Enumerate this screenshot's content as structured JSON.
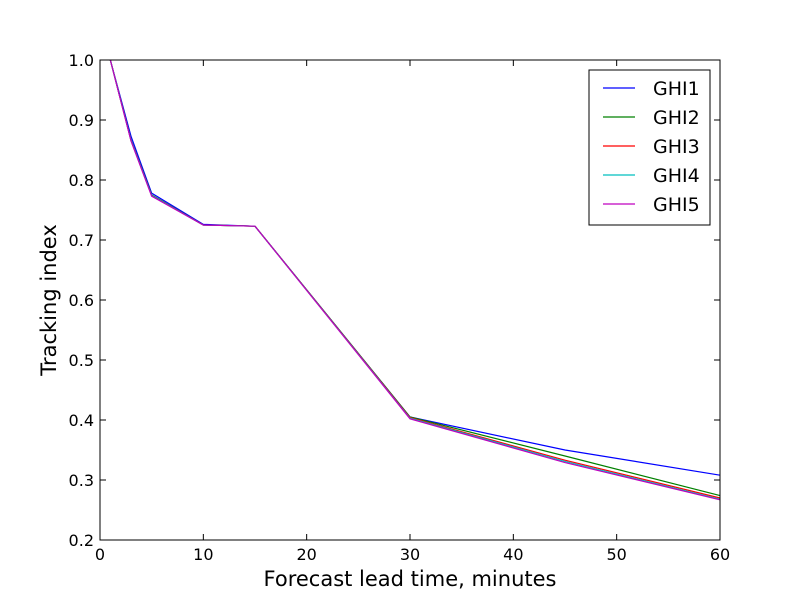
{
  "chart_data": {
    "type": "line",
    "title": "",
    "xlabel": "Forecast lead time, minutes",
    "ylabel": "Tracking index",
    "xlim": [
      0,
      60
    ],
    "ylim": [
      0.2,
      1.0
    ],
    "xticks": [
      0,
      10,
      20,
      30,
      40,
      50,
      60
    ],
    "xtick_labels": [
      "0",
      "10",
      "20",
      "30",
      "40",
      "50",
      "60"
    ],
    "yticks": [
      0.2,
      0.3,
      0.4,
      0.5,
      0.6,
      0.7,
      0.8,
      0.9,
      1.0
    ],
    "ytick_labels": [
      "0.2",
      "0.3",
      "0.4",
      "0.5",
      "0.6",
      "0.7",
      "0.8",
      "0.9",
      "1.0"
    ],
    "grid": false,
    "legend_position": "top-right",
    "x": [
      1,
      3,
      5,
      10,
      15,
      30,
      45,
      60
    ],
    "series": [
      {
        "name": "GHI1",
        "color": "#0000ff",
        "values": [
          1.0,
          0.873,
          0.778,
          0.726,
          0.723,
          0.405,
          0.35,
          0.308
        ]
      },
      {
        "name": "GHI2",
        "color": "#008000",
        "values": [
          1.0,
          0.867,
          0.775,
          0.725,
          0.723,
          0.405,
          0.34,
          0.274
        ]
      },
      {
        "name": "GHI3",
        "color": "#ff0000",
        "values": [
          1.0,
          0.866,
          0.774,
          0.725,
          0.723,
          0.404,
          0.333,
          0.27
        ]
      },
      {
        "name": "GHI4",
        "color": "#00bfbf",
        "values": [
          1.0,
          0.866,
          0.774,
          0.725,
          0.723,
          0.403,
          0.331,
          0.268
        ]
      },
      {
        "name": "GHI5",
        "color": "#bf00bf",
        "values": [
          1.0,
          0.865,
          0.773,
          0.725,
          0.723,
          0.402,
          0.329,
          0.267
        ]
      }
    ]
  }
}
